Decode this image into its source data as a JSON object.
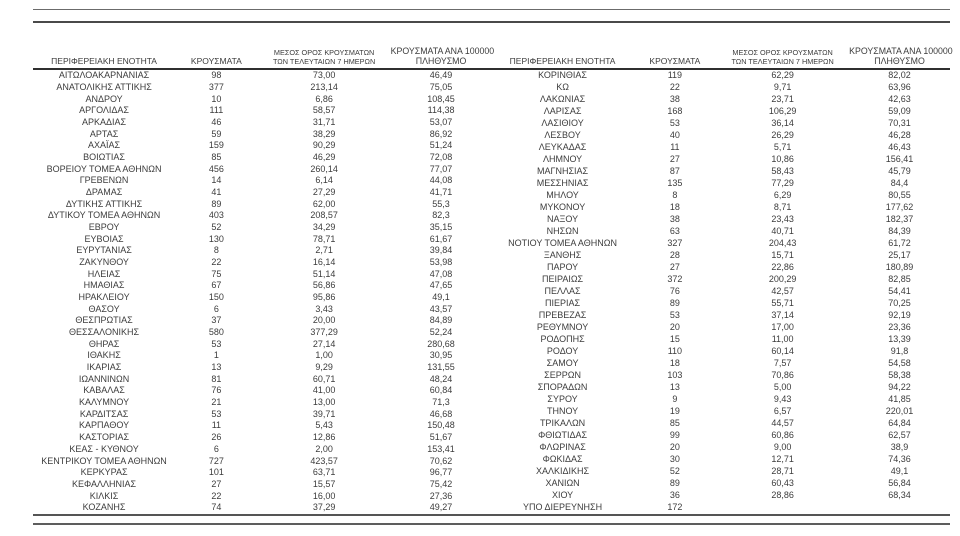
{
  "colors": {
    "background": "#ffffff",
    "text": "#3c3c3c",
    "rule": "#4a4a4a"
  },
  "table": {
    "columns": {
      "region": "ΠΕΡΙΦΕΡΕΙΑΚΗ ΕΝΟΤΗΤΑ",
      "cases": "ΚΡΟΥΣΜΑΤΑ",
      "avg7_line1": "ΜΕΣΟΣ ΟΡΟΣ ΚΡΟΥΣΜΑΤΩΝ",
      "avg7_line2": "ΤΩΝ ΤΕΛΕΥΤΑΙΩΝ 7 ΗΜΕΡΩΝ",
      "per100k_line1": "ΚΡΟΥΣΜΑΤΑ ΑΝΑ 100000",
      "per100k_line2": "ΠΛΗΘΥΣΜΟ"
    },
    "left_rows": [
      [
        "ΑΙΤΩΛΟΑΚΑΡΝΑΝΙΑΣ",
        "98",
        "73,00",
        "46,49"
      ],
      [
        "ΑΝΑΤΟΛΙΚΗΣ ΑΤΤΙΚΗΣ",
        "377",
        "213,14",
        "75,05"
      ],
      [
        "ΑΝΔΡΟΥ",
        "10",
        "6,86",
        "108,45"
      ],
      [
        "ΑΡΓΟΛΙΔΑΣ",
        "111",
        "58,57",
        "114,38"
      ],
      [
        "ΑΡΚΑΔΙΑΣ",
        "46",
        "31,71",
        "53,07"
      ],
      [
        "ΑΡΤΑΣ",
        "59",
        "38,29",
        "86,92"
      ],
      [
        "ΑΧΑΪΑΣ",
        "159",
        "90,29",
        "51,24"
      ],
      [
        "ΒΟΙΩΤΙΑΣ",
        "85",
        "46,29",
        "72,08"
      ],
      [
        "ΒΟΡΕΙΟΥ ΤΟΜΕΑ ΑΘΗΝΩΝ",
        "456",
        "260,14",
        "77,07"
      ],
      [
        "ΓΡΕΒΕΝΩΝ",
        "14",
        "6,14",
        "44,08"
      ],
      [
        "ΔΡΑΜΑΣ",
        "41",
        "27,29",
        "41,71"
      ],
      [
        "ΔΥΤΙΚΗΣ ΑΤΤΙΚΗΣ",
        "89",
        "62,00",
        "55,3"
      ],
      [
        "ΔΥΤΙΚΟΥ ΤΟΜΕΑ ΑΘΗΝΩΝ",
        "403",
        "208,57",
        "82,3"
      ],
      [
        "ΕΒΡΟΥ",
        "52",
        "34,29",
        "35,15"
      ],
      [
        "ΕΥΒΟΙΑΣ",
        "130",
        "78,71",
        "61,67"
      ],
      [
        "ΕΥΡΥΤΑΝΙΑΣ",
        "8",
        "2,71",
        "39,84"
      ],
      [
        "ΖΑΚΥΝΘΟΥ",
        "22",
        "16,14",
        "53,98"
      ],
      [
        "ΗΛΕΙΑΣ",
        "75",
        "51,14",
        "47,08"
      ],
      [
        "ΗΜΑΘΙΑΣ",
        "67",
        "56,86",
        "47,65"
      ],
      [
        "ΗΡΑΚΛΕΙΟΥ",
        "150",
        "95,86",
        "49,1"
      ],
      [
        "ΘΑΣΟΥ",
        "6",
        "3,43",
        "43,57"
      ],
      [
        "ΘΕΣΠΡΩΤΙΑΣ",
        "37",
        "20,00",
        "84,89"
      ],
      [
        "ΘΕΣΣΑΛΟΝΙΚΗΣ",
        "580",
        "377,29",
        "52,24"
      ],
      [
        "ΘΗΡΑΣ",
        "53",
        "27,14",
        "280,68"
      ],
      [
        "ΙΘΑΚΗΣ",
        "1",
        "1,00",
        "30,95"
      ],
      [
        "ΙΚΑΡΙΑΣ",
        "13",
        "9,29",
        "131,55"
      ],
      [
        "ΙΩΑΝΝΙΝΩΝ",
        "81",
        "60,71",
        "48,24"
      ],
      [
        "ΚΑΒΑΛΑΣ",
        "76",
        "41,00",
        "60,84"
      ],
      [
        "ΚΑΛΥΜΝΟΥ",
        "21",
        "13,00",
        "71,3"
      ],
      [
        "ΚΑΡΔΙΤΣΑΣ",
        "53",
        "39,71",
        "46,68"
      ],
      [
        "ΚΑΡΠΑΘΟΥ",
        "11",
        "5,43",
        "150,48"
      ],
      [
        "ΚΑΣΤΟΡΙΑΣ",
        "26",
        "12,86",
        "51,67"
      ],
      [
        "ΚΕΑΣ - ΚΥΘΝΟΥ",
        "6",
        "2,00",
        "153,41"
      ],
      [
        "ΚΕΝΤΡΙΚΟΥ ΤΟΜΕΑ ΑΘΗΝΩΝ",
        "727",
        "423,57",
        "70,62"
      ],
      [
        "ΚΕΡΚΥΡΑΣ",
        "101",
        "63,71",
        "96,77"
      ],
      [
        "ΚΕΦΑΛΛΗΝΙΑΣ",
        "27",
        "15,57",
        "75,42"
      ],
      [
        "ΚΙΛΚΙΣ",
        "22",
        "16,00",
        "27,36"
      ],
      [
        "ΚΟΖΑΝΗΣ",
        "74",
        "37,29",
        "49,27"
      ]
    ],
    "right_rows": [
      [
        "ΚΟΡΙΝΘΙΑΣ",
        "119",
        "62,29",
        "82,02"
      ],
      [
        "ΚΩ",
        "22",
        "9,71",
        "63,96"
      ],
      [
        "ΛΑΚΩΝΙΑΣ",
        "38",
        "23,71",
        "42,63"
      ],
      [
        "ΛΑΡΙΣΑΣ",
        "168",
        "106,29",
        "59,09"
      ],
      [
        "ΛΑΣΙΘΙΟΥ",
        "53",
        "36,14",
        "70,31"
      ],
      [
        "ΛΕΣΒΟΥ",
        "40",
        "26,29",
        "46,28"
      ],
      [
        "ΛΕΥΚΑΔΑΣ",
        "11",
        "5,71",
        "46,43"
      ],
      [
        "ΛΗΜΝΟΥ",
        "27",
        "10,86",
        "156,41"
      ],
      [
        "ΜΑΓΝΗΣΙΑΣ",
        "87",
        "58,43",
        "45,79"
      ],
      [
        "ΜΕΣΣΗΝΙΑΣ",
        "135",
        "77,29",
        "84,4"
      ],
      [
        "ΜΗΛΟΥ",
        "8",
        "6,29",
        "80,55"
      ],
      [
        "ΜΥΚΟΝΟΥ",
        "18",
        "8,71",
        "177,62"
      ],
      [
        "ΝΑΞΟΥ",
        "38",
        "23,43",
        "182,37"
      ],
      [
        "ΝΗΣΩΝ",
        "63",
        "40,71",
        "84,39"
      ],
      [
        "ΝΟΤΙΟΥ ΤΟΜΕΑ ΑΘΗΝΩΝ",
        "327",
        "204,43",
        "61,72"
      ],
      [
        "ΞΑΝΘΗΣ",
        "28",
        "15,71",
        "25,17"
      ],
      [
        "ΠΑΡΟΥ",
        "27",
        "22,86",
        "180,89"
      ],
      [
        "ΠΕΙΡΑΙΩΣ",
        "372",
        "200,29",
        "82,85"
      ],
      [
        "ΠΕΛΛΑΣ",
        "76",
        "42,57",
        "54,41"
      ],
      [
        "ΠΙΕΡΙΑΣ",
        "89",
        "55,71",
        "70,25"
      ],
      [
        "ΠΡΕΒΕΖΑΣ",
        "53",
        "37,14",
        "92,19"
      ],
      [
        "ΡΕΘΥΜΝΟΥ",
        "20",
        "17,00",
        "23,36"
      ],
      [
        "ΡΟΔΟΠΗΣ",
        "15",
        "11,00",
        "13,39"
      ],
      [
        "ΡΟΔΟΥ",
        "110",
        "60,14",
        "91,8"
      ],
      [
        "ΣΑΜΟΥ",
        "18",
        "7,57",
        "54,58"
      ],
      [
        "ΣΕΡΡΩΝ",
        "103",
        "70,86",
        "58,38"
      ],
      [
        "ΣΠΟΡΑΔΩΝ",
        "13",
        "5,00",
        "94,22"
      ],
      [
        "ΣΥΡΟΥ",
        "9",
        "9,43",
        "41,85"
      ],
      [
        "ΤΗΝΟΥ",
        "19",
        "6,57",
        "220,01"
      ],
      [
        "ΤΡΙΚΑΛΩΝ",
        "85",
        "44,57",
        "64,84"
      ],
      [
        "ΦΘΙΩΤΙΔΑΣ",
        "99",
        "60,86",
        "62,57"
      ],
      [
        "ΦΛΩΡΙΝΑΣ",
        "20",
        "9,00",
        "38,9"
      ],
      [
        "ΦΩΚΙΔΑΣ",
        "30",
        "12,71",
        "74,36"
      ],
      [
        "ΧΑΛΚΙΔΙΚΗΣ",
        "52",
        "28,71",
        "49,1"
      ],
      [
        "ΧΑΝΙΩΝ",
        "89",
        "60,43",
        "56,84"
      ],
      [
        "ΧΙΟΥ",
        "36",
        "28,86",
        "68,34"
      ],
      [
        "ΥΠΟ ΔΙΕΡΕΥΝΗΣΗ",
        "172",
        "",
        ""
      ]
    ]
  }
}
